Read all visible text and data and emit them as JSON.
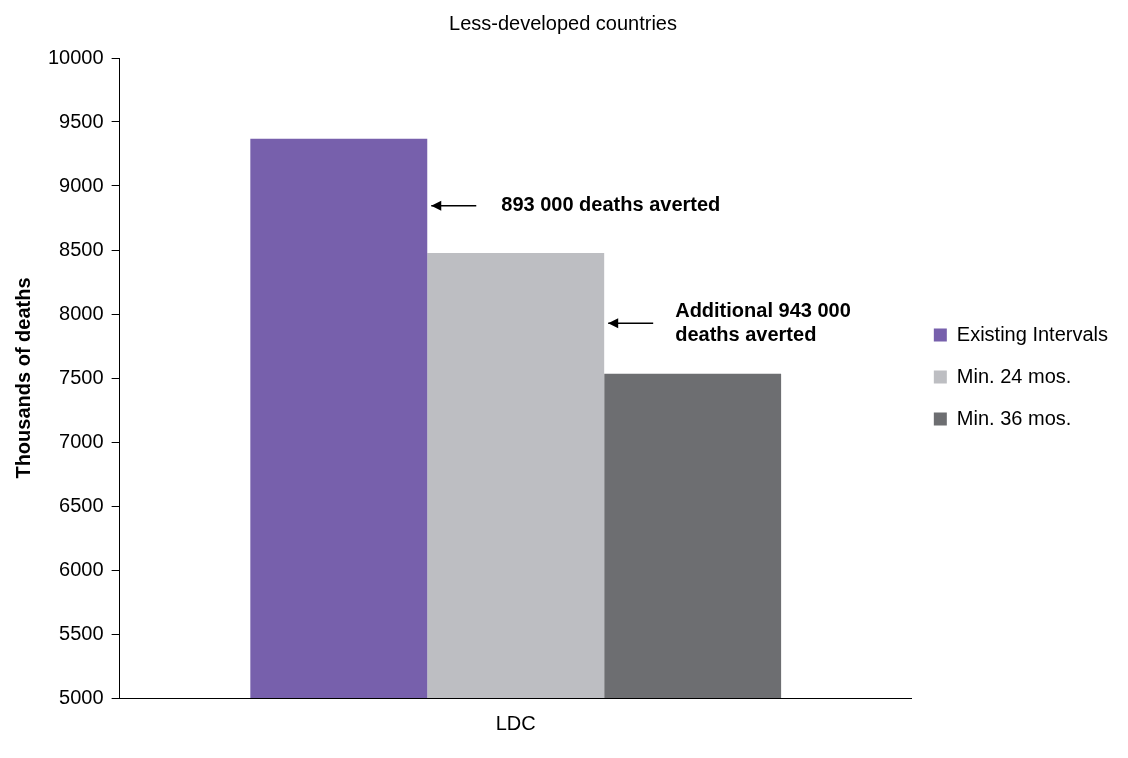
{
  "chart_data": {
    "type": "bar",
    "title": "Less-developed countries",
    "ylabel": "Thousands of deaths",
    "categories": [
      "LDC"
    ],
    "series": [
      {
        "name": "Existing Intervals",
        "color": "#7760ac",
        "values": [
          9370
        ]
      },
      {
        "name": "Min. 24 mos.",
        "color": "#bdbec2",
        "values": [
          8477
        ]
      },
      {
        "name": "Min. 36 mos.",
        "color": "#6d6e71",
        "values": [
          7534
        ]
      }
    ],
    "ylim": [
      5000,
      10000
    ],
    "yticks": [
      5000,
      5500,
      6000,
      6500,
      7000,
      7500,
      8000,
      8500,
      9000,
      9500,
      10000
    ],
    "grid": false,
    "legend": "right",
    "annotations": [
      "893 000 deaths averted",
      "Additional 943 000 deaths averted"
    ]
  }
}
